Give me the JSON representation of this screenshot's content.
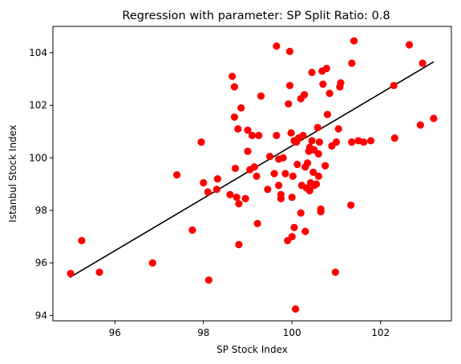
{
  "chart_data": {
    "type": "scatter",
    "title": "Regression with parameter: SP Split Ratio: 0.8",
    "xlabel": "SP Stock Index",
    "ylabel": "Istanbul Stock Index",
    "xlim": [
      94.6,
      103.6
    ],
    "ylim": [
      93.8,
      105.0
    ],
    "xticks": [
      96,
      98,
      100,
      102
    ],
    "yticks": [
      94,
      96,
      98,
      100,
      102,
      104
    ],
    "grid": false,
    "colors": {
      "points": "#ff0000",
      "regression_line": "#000000",
      "axes": "#000000"
    },
    "series": [
      {
        "kind": "scatter",
        "points": [
          {
            "x": 95.0,
            "y": 95.6
          },
          {
            "x": 95.25,
            "y": 96.85
          },
          {
            "x": 95.65,
            "y": 95.65
          },
          {
            "x": 96.85,
            "y": 96.0
          },
          {
            "x": 97.4,
            "y": 99.35
          },
          {
            "x": 97.75,
            "y": 97.25
          },
          {
            "x": 97.95,
            "y": 100.6
          },
          {
            "x": 98.0,
            "y": 99.05
          },
          {
            "x": 98.1,
            "y": 98.7
          },
          {
            "x": 98.12,
            "y": 95.35
          },
          {
            "x": 98.3,
            "y": 98.8
          },
          {
            "x": 98.32,
            "y": 99.2
          },
          {
            "x": 98.6,
            "y": 98.6
          },
          {
            "x": 98.65,
            "y": 103.1
          },
          {
            "x": 98.7,
            "y": 102.7
          },
          {
            "x": 98.7,
            "y": 101.55
          },
          {
            "x": 98.72,
            "y": 99.6
          },
          {
            "x": 98.75,
            "y": 98.5
          },
          {
            "x": 98.78,
            "y": 101.1
          },
          {
            "x": 98.8,
            "y": 96.7
          },
          {
            "x": 98.8,
            "y": 98.25
          },
          {
            "x": 98.85,
            "y": 101.9
          },
          {
            "x": 98.95,
            "y": 98.45
          },
          {
            "x": 99.0,
            "y": 100.25
          },
          {
            "x": 99.0,
            "y": 101.05
          },
          {
            "x": 99.05,
            "y": 99.55
          },
          {
            "x": 99.1,
            "y": 100.85
          },
          {
            "x": 99.15,
            "y": 99.65
          },
          {
            "x": 99.2,
            "y": 99.3
          },
          {
            "x": 99.22,
            "y": 97.5
          },
          {
            "x": 99.25,
            "y": 100.85
          },
          {
            "x": 99.3,
            "y": 102.35
          },
          {
            "x": 99.45,
            "y": 98.8
          },
          {
            "x": 99.5,
            "y": 100.05
          },
          {
            "x": 99.6,
            "y": 99.4
          },
          {
            "x": 99.65,
            "y": 104.25
          },
          {
            "x": 99.65,
            "y": 100.85
          },
          {
            "x": 99.7,
            "y": 99.95
          },
          {
            "x": 99.7,
            "y": 98.95
          },
          {
            "x": 99.75,
            "y": 98.45
          },
          {
            "x": 99.75,
            "y": 98.6
          },
          {
            "x": 99.8,
            "y": 100.0
          },
          {
            "x": 99.85,
            "y": 99.4
          },
          {
            "x": 99.9,
            "y": 96.85
          },
          {
            "x": 99.92,
            "y": 102.05
          },
          {
            "x": 99.95,
            "y": 102.75
          },
          {
            "x": 99.95,
            "y": 104.05
          },
          {
            "x": 99.98,
            "y": 100.95
          },
          {
            "x": 100.0,
            "y": 97.0
          },
          {
            "x": 100.0,
            "y": 98.5
          },
          {
            "x": 100.02,
            "y": 99.3
          },
          {
            "x": 100.05,
            "y": 100.65
          },
          {
            "x": 100.05,
            "y": 97.35
          },
          {
            "x": 100.08,
            "y": 94.25
          },
          {
            "x": 100.1,
            "y": 100.6
          },
          {
            "x": 100.12,
            "y": 99.75
          },
          {
            "x": 100.15,
            "y": 100.75
          },
          {
            "x": 100.2,
            "y": 102.25
          },
          {
            "x": 100.2,
            "y": 97.9
          },
          {
            "x": 100.22,
            "y": 98.95
          },
          {
            "x": 100.25,
            "y": 100.85
          },
          {
            "x": 100.28,
            "y": 102.4
          },
          {
            "x": 100.3,
            "y": 97.2
          },
          {
            "x": 100.3,
            "y": 99.65
          },
          {
            "x": 100.33,
            "y": 98.85
          },
          {
            "x": 100.35,
            "y": 99.8
          },
          {
            "x": 100.38,
            "y": 100.25
          },
          {
            "x": 100.4,
            "y": 100.4
          },
          {
            "x": 100.4,
            "y": 98.75
          },
          {
            "x": 100.42,
            "y": 99.05
          },
          {
            "x": 100.45,
            "y": 100.65
          },
          {
            "x": 100.45,
            "y": 103.25
          },
          {
            "x": 100.48,
            "y": 99.45
          },
          {
            "x": 100.5,
            "y": 98.95
          },
          {
            "x": 100.5,
            "y": 100.3
          },
          {
            "x": 100.55,
            "y": 99.0
          },
          {
            "x": 100.58,
            "y": 101.15
          },
          {
            "x": 100.6,
            "y": 99.3
          },
          {
            "x": 100.6,
            "y": 100.15
          },
          {
            "x": 100.62,
            "y": 100.6
          },
          {
            "x": 100.65,
            "y": 98.05
          },
          {
            "x": 100.65,
            "y": 97.95
          },
          {
            "x": 100.68,
            "y": 103.3
          },
          {
            "x": 100.7,
            "y": 102.8
          },
          {
            "x": 100.75,
            "y": 99.7
          },
          {
            "x": 100.78,
            "y": 103.4
          },
          {
            "x": 100.8,
            "y": 101.65
          },
          {
            "x": 100.85,
            "y": 102.45
          },
          {
            "x": 100.9,
            "y": 100.45
          },
          {
            "x": 100.98,
            "y": 95.65
          },
          {
            "x": 101.0,
            "y": 100.6
          },
          {
            "x": 101.05,
            "y": 101.1
          },
          {
            "x": 101.08,
            "y": 102.7
          },
          {
            "x": 101.1,
            "y": 102.85
          },
          {
            "x": 101.33,
            "y": 98.2
          },
          {
            "x": 101.35,
            "y": 103.6
          },
          {
            "x": 101.35,
            "y": 100.6
          },
          {
            "x": 101.4,
            "y": 104.45
          },
          {
            "x": 101.5,
            "y": 100.65
          },
          {
            "x": 101.62,
            "y": 100.6
          },
          {
            "x": 101.78,
            "y": 100.65
          },
          {
            "x": 102.3,
            "y": 102.75
          },
          {
            "x": 102.32,
            "y": 100.75
          },
          {
            "x": 102.65,
            "y": 104.3
          },
          {
            "x": 102.9,
            "y": 101.25
          },
          {
            "x": 102.95,
            "y": 103.6
          },
          {
            "x": 103.2,
            "y": 101.5
          }
        ]
      },
      {
        "kind": "line",
        "points": [
          {
            "x": 94.98,
            "y": 95.45
          },
          {
            "x": 103.2,
            "y": 103.65
          }
        ]
      }
    ]
  }
}
